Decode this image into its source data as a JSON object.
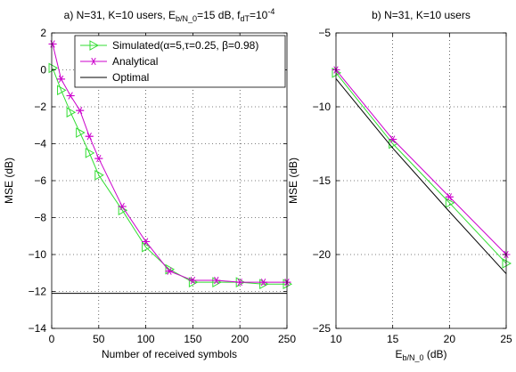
{
  "chart_data": [
    {
      "type": "line",
      "title": "a) N=31, K=10 users, E_b/N_0=15 dB, f_dT=10^-4",
      "xlabel": "Number of received symbols",
      "ylabel": "MSE (dB)",
      "xlim": [
        0,
        250
      ],
      "ylim": [
        -14,
        2
      ],
      "xticks": [
        0,
        50,
        100,
        150,
        200,
        250
      ],
      "yticks": [
        -14,
        -12,
        -10,
        -8,
        -6,
        -4,
        -2,
        0,
        2
      ],
      "grid": true,
      "legend_position": "top-right",
      "series": [
        {
          "name": "Simulated(α=5,τ=0.25, β=0.98)",
          "color": "#33dd33",
          "marker": "triangle-right",
          "x": [
            1,
            10,
            20,
            30,
            40,
            50,
            75,
            100,
            125,
            150,
            175,
            200,
            225,
            250
          ],
          "y": [
            0.1,
            -1.1,
            -2.3,
            -3.4,
            -4.5,
            -5.7,
            -7.6,
            -9.6,
            -10.8,
            -11.5,
            -11.5,
            -11.5,
            -11.6,
            -11.6
          ]
        },
        {
          "name": "Analytical",
          "color": "#cc00cc",
          "marker": "asterisk",
          "x": [
            1,
            10,
            20,
            30,
            40,
            50,
            75,
            100,
            125,
            150,
            175,
            200,
            225,
            250
          ],
          "y": [
            1.4,
            -0.5,
            -1.4,
            -2.2,
            -3.6,
            -4.8,
            -7.4,
            -9.3,
            -10.9,
            -11.4,
            -11.4,
            -11.5,
            -11.5,
            -11.5
          ]
        },
        {
          "name": "Optimal",
          "color": "#000000",
          "marker": "none",
          "x": [
            0,
            250
          ],
          "y": [
            -12.1,
            -12.1
          ]
        }
      ]
    },
    {
      "type": "line",
      "title": "b) N=31, K=10 users",
      "xlabel": "E_b/N_0 (dB)",
      "ylabel": "MSE (dB)",
      "xlim": [
        10,
        25
      ],
      "ylim": [
        -25,
        -5
      ],
      "xticks": [
        10,
        15,
        20,
        25
      ],
      "yticks": [
        -25,
        -20,
        -15,
        -10,
        -5
      ],
      "grid": true,
      "series": [
        {
          "color": "#33dd33",
          "marker": "triangle-right",
          "x": [
            10,
            15,
            20,
            25
          ],
          "y": [
            -7.7,
            -12.5,
            -16.5,
            -20.6
          ]
        },
        {
          "color": "#cc00cc",
          "marker": "asterisk",
          "x": [
            10,
            15,
            20,
            25
          ],
          "y": [
            -7.5,
            -12.2,
            -16.1,
            -20.0
          ]
        },
        {
          "color": "#000000",
          "marker": "none",
          "x": [
            10,
            15,
            20,
            25
          ],
          "y": [
            -8.1,
            -12.8,
            -17.1,
            -21.3
          ]
        }
      ]
    }
  ]
}
